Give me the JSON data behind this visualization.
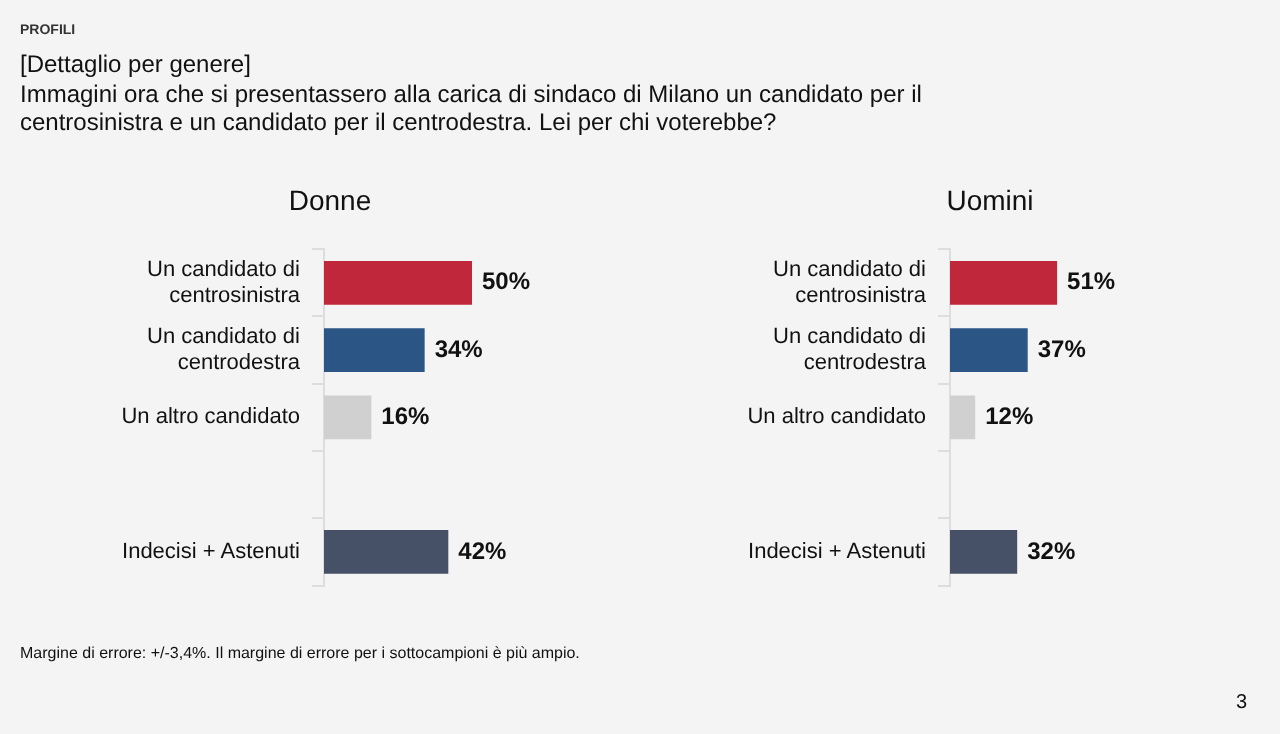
{
  "chart_data": [
    {
      "type": "bar",
      "orientation": "horizontal",
      "title": "Donne",
      "categories": [
        "Un candidato di centrosinistra",
        "Un candidato di centrodestra",
        "Un altro candidato",
        null,
        "Indecisi + Astenuti"
      ],
      "values": [
        50,
        34,
        16,
        null,
        42
      ],
      "value_labels": [
        "50%",
        "34%",
        "16%",
        null,
        "42%"
      ],
      "colors": [
        "#c0273a",
        "#2b5585",
        "#d0d0d0",
        "#d0d0d0",
        "#465066"
      ],
      "annotations": [
        "PROFILI",
        "[Dettaglio per genere]",
        "Immagini ora che si presentassero alla carica di sindaco di Milano un candidato per il centrosinistra e un candidato per il centrodestra. Lei per chi voterebbe?",
        "Margine di errore: +/-3,4%. Il margine di errore per i sottocampioni è più ampio.",
        "3"
      ]
    },
    {
      "type": "bar",
      "orientation": "horizontal",
      "title": "Uomini",
      "categories": [
        "Un candidato di centrosinistra",
        "Un candidato di centrodestra",
        "Un altro candidato",
        null,
        "Indecisi + Astenuti"
      ],
      "values": [
        51,
        37,
        12,
        null,
        32
      ],
      "value_labels": [
        "51%",
        "37%",
        "12%",
        null,
        "32%"
      ],
      "colors": [
        "#c0273a",
        "#2b5585",
        "#d0d0d0",
        "#d0d0d0",
        "#465066"
      ]
    }
  ]
}
